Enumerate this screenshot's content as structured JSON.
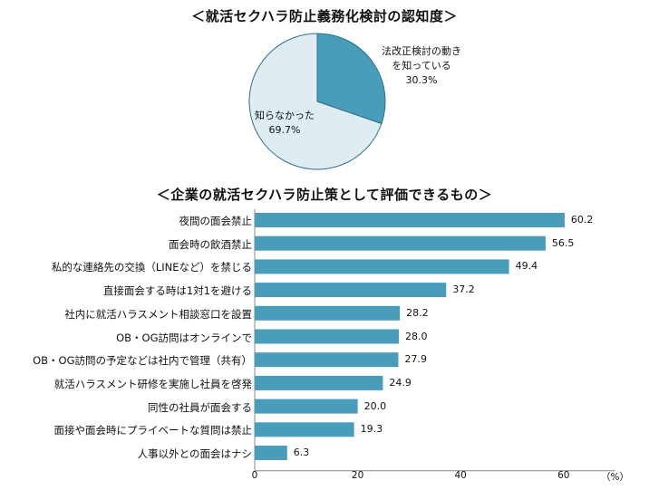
{
  "chart_data": [
    {
      "type": "pie",
      "title": "＜就活セクハラ防止義務化検討の認知度＞",
      "slices": [
        {
          "label": "法改正検討の動きを知っている",
          "value": 30.3,
          "value_label": "30.3%",
          "color": "#4a9cbb"
        },
        {
          "label": "知らなかった",
          "value": 69.7,
          "value_label": "69.7%",
          "color": "#dfecf2"
        }
      ]
    },
    {
      "type": "bar",
      "orientation": "horizontal",
      "title": "＜企業の就活セクハラ防止策として評価できるもの＞",
      "categories": [
        "夜間の面会禁止",
        "面会時の飲酒禁止",
        "私的な連絡先の交換（LINEなど）を禁じる",
        "直接面会する時は1対1を避ける",
        "社内に就活ハラスメント相談窓口を設置",
        "OB・OG訪問はオンラインで",
        "OB・OG訪問の予定などは社内で管理（共有）",
        "就活ハラスメント研修を実施し社員を啓発",
        "同性の社員が面会する",
        "面接や面会時にプライベートな質問は禁止",
        "人事以外との面会はナシ"
      ],
      "values": [
        60.2,
        56.5,
        49.4,
        37.2,
        28.2,
        28.0,
        27.9,
        24.9,
        20.0,
        19.3,
        6.3
      ],
      "value_labels": [
        "60.2",
        "56.5",
        "49.4",
        "37.2",
        "28.2",
        "28.0",
        "27.9",
        "24.9",
        "20.0",
        "19.3",
        "6.3"
      ],
      "xlim": [
        0,
        70
      ],
      "xticks": [
        "0",
        "20",
        "40",
        "60"
      ],
      "xunit": "（%）",
      "bar_color": "#4a9cbb",
      "grid": false
    }
  ]
}
